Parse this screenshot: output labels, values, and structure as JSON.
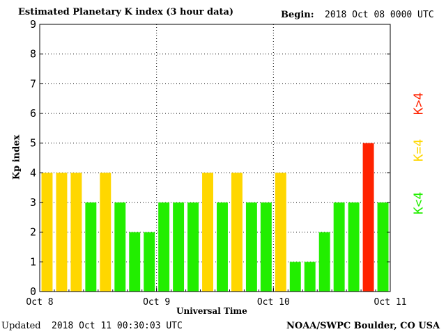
{
  "header": {
    "title": "Estimated Planetary K index (3 hour data)",
    "begin_label": "Begin:",
    "begin_value": "2018 Oct 08 0000 UTC"
  },
  "footer": {
    "updated_label": "Updated",
    "updated_value": "2018 Oct 11 00:30:03 UTC",
    "credit": "NOAA/SWPC Boulder, CO USA"
  },
  "legend": {
    "below": "K<4",
    "equal": "K=4",
    "above": "K>4"
  },
  "colors": {
    "below": "#22ee00",
    "equal": "#ffd700",
    "above": "#ff2200",
    "grid": "#000000"
  },
  "chart_data": {
    "type": "bar",
    "title": "Estimated Planetary K index (3 hour data)",
    "xlabel": "Universal Time",
    "ylabel": "Kp index",
    "ylim": [
      0,
      9
    ],
    "yticks": [
      0,
      1,
      2,
      3,
      4,
      5,
      6,
      7,
      8,
      9
    ],
    "xticks": [
      "Oct 8",
      "Oct 9",
      "Oct 10",
      "Oct 11"
    ],
    "grid": true,
    "values": [
      4,
      4,
      4,
      3,
      4,
      3,
      2,
      2,
      3,
      3,
      3,
      4,
      3,
      4,
      3,
      3,
      4,
      1,
      1,
      2,
      3,
      3,
      5,
      3
    ]
  }
}
